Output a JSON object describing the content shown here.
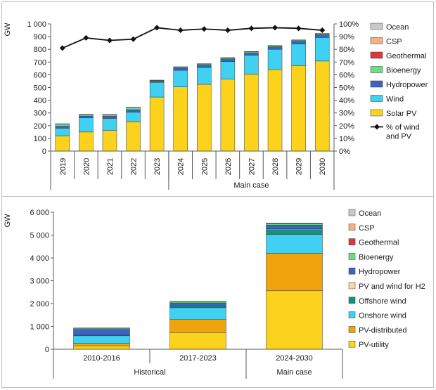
{
  "colors": {
    "Ocean": "#c9c9c9",
    "CSP": "#f4b183",
    "Geothermal": "#d9363e",
    "Bioenergy": "#6fdc8c",
    "Hydropower": "#3b62c4",
    "PV and wind for H2": "#f8d7a6",
    "Offshore wind": "#12947c",
    "Onshore wind": "#3fd0f2",
    "Wind": "#3fd0f2",
    "PV-distributed": "#f0a30a",
    "PV-utility": "#fcd21c",
    "Solar PV": "#fcd21c",
    "line": "#111111"
  },
  "chart_data": [
    {
      "type": "bar",
      "stacked": true,
      "ylabel": "GW",
      "ylim": [
        0,
        1000
      ],
      "yticks": [
        "0",
        "100",
        "200",
        "300",
        "400",
        "500",
        "600",
        "700",
        "800",
        "900",
        "1 000"
      ],
      "y2lim": [
        0,
        100
      ],
      "y2ticks": [
        "0%",
        "10%",
        "20%",
        "30%",
        "40%",
        "50%",
        "60%",
        "70%",
        "80%",
        "90%",
        "100%"
      ],
      "categories": [
        "2019",
        "2020",
        "2021",
        "2022",
        "2023",
        "2024",
        "2025",
        "2026",
        "2027",
        "2028",
        "2029",
        "2030"
      ],
      "groups": [
        {
          "label": "",
          "from": 0,
          "to": 4
        },
        {
          "label": "Main case",
          "from": 5,
          "to": 11
        }
      ],
      "series": [
        {
          "name": "Solar PV",
          "values": [
            118,
            150,
            162,
            230,
            425,
            505,
            525,
            565,
            605,
            640,
            672,
            708
          ]
        },
        {
          "name": "Wind",
          "values": [
            62,
            112,
            95,
            75,
            115,
            130,
            132,
            138,
            148,
            160,
            170,
            185
          ]
        },
        {
          "name": "Hydropower",
          "values": [
            16,
            14,
            18,
            20,
            12,
            18,
            20,
            22,
            20,
            20,
            22,
            22
          ]
        },
        {
          "name": "Bioenergy",
          "values": [
            17,
            12,
            12,
            18,
            4,
            8,
            8,
            8,
            8,
            8,
            8,
            8
          ]
        },
        {
          "name": "Geothermal",
          "values": [
            1,
            1,
            1,
            1,
            1,
            1,
            1,
            1,
            1,
            1,
            1,
            1
          ]
        },
        {
          "name": "CSP",
          "values": [
            1,
            1,
            1,
            1,
            1,
            1,
            1,
            1,
            1,
            1,
            1,
            1
          ]
        },
        {
          "name": "Ocean",
          "values": [
            0,
            0,
            0,
            0,
            0,
            0,
            0,
            0,
            0,
            0,
            0,
            0
          ]
        }
      ],
      "line": {
        "name": "% of wind and PV",
        "label_lines": [
          "% of wind",
          "and PV"
        ],
        "values": [
          81,
          89,
          87,
          88,
          97,
          95,
          96,
          95,
          96.5,
          97,
          96.5,
          95
        ]
      },
      "legend": [
        "Ocean",
        "CSP",
        "Geothermal",
        "Bioenergy",
        "Hydropower",
        "Wind",
        "Solar PV"
      ],
      "legend_position": "right",
      "grid": false
    },
    {
      "type": "bar",
      "stacked": true,
      "ylabel": "GW",
      "ylim": [
        0,
        6000
      ],
      "yticks": [
        "0",
        "1 000",
        "2 000",
        "3 000",
        "4 000",
        "5 000",
        "6 000"
      ],
      "categories": [
        "2010-2016",
        "2017-2023",
        "2024-2030"
      ],
      "groups": [
        {
          "label": "Historical",
          "from": 0,
          "to": 1
        },
        {
          "label": "Main case",
          "from": 2,
          "to": 2
        }
      ],
      "series": [
        {
          "name": "PV-utility",
          "values": [
            150,
            730,
            2560
          ]
        },
        {
          "name": "PV-distributed",
          "values": [
            110,
            570,
            1640
          ]
        },
        {
          "name": "Onshore wind",
          "values": [
            330,
            520,
            830
          ]
        },
        {
          "name": "Offshore wind",
          "values": [
            30,
            70,
            210
          ]
        },
        {
          "name": "PV and wind for H2",
          "values": [
            0,
            0,
            30
          ]
        },
        {
          "name": "Hydropower",
          "values": [
            250,
            140,
            170
          ]
        },
        {
          "name": "Bioenergy",
          "values": [
            50,
            50,
            50
          ]
        },
        {
          "name": "Geothermal",
          "values": [
            8,
            8,
            15
          ]
        },
        {
          "name": "CSP",
          "values": [
            4,
            4,
            10
          ]
        },
        {
          "name": "Ocean",
          "values": [
            0,
            0,
            3
          ]
        }
      ],
      "legend": [
        "Ocean",
        "CSP",
        "Geothermal",
        "Bioenergy",
        "Hydropower",
        "PV and wind for H2",
        "Offshore wind",
        "Onshore wind",
        "PV-distributed",
        "PV-utility"
      ],
      "legend_position": "right",
      "grid": false
    }
  ]
}
